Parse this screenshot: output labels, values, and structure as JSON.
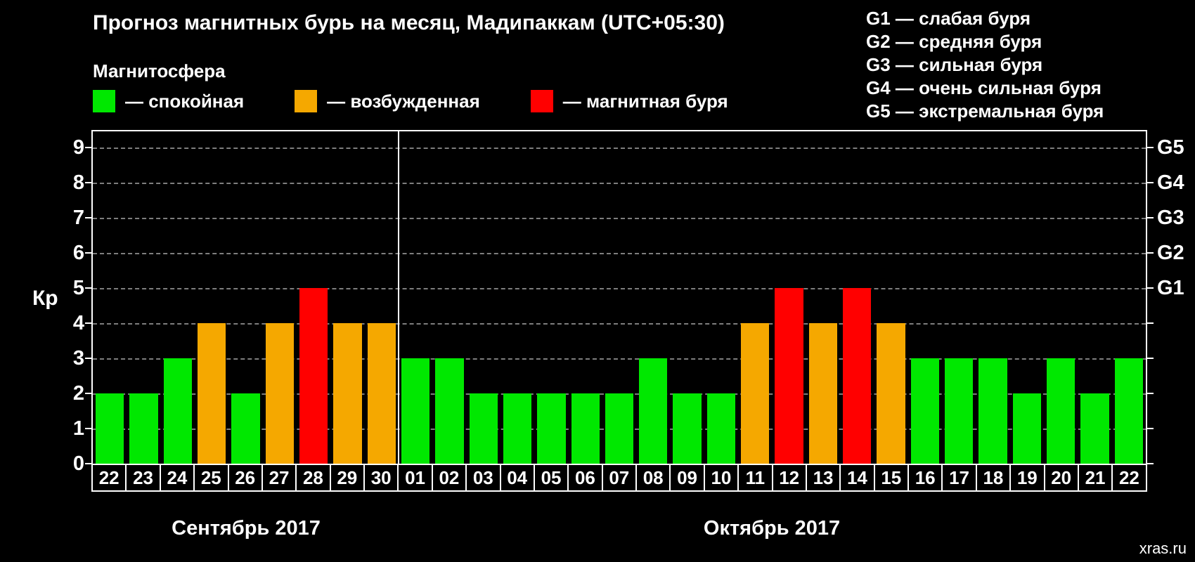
{
  "title": "Прогноз магнитных бурь на месяц, Мадипаккам (UTC+05:30)",
  "subtitle": "Магнитосфера",
  "watermark": "xras.ru",
  "colors": {
    "quiet": "#00e800",
    "excited": "#f5a800",
    "storm": "#ff0000",
    "grid": "#7e7e7e",
    "axis": "#ffffff",
    "background": "#000000",
    "text": "#ffffff"
  },
  "legend": [
    {
      "key": "quiet",
      "label": "— спокойная"
    },
    {
      "key": "excited",
      "label": "— возбужденная"
    },
    {
      "key": "storm",
      "label": "— магнитная буря"
    }
  ],
  "g_legend": [
    "G1 — слабая буря",
    "G2 — средняя буря",
    "G3 — сильная буря",
    "G4 — очень сильная буря",
    "G5 — экстремальная буря"
  ],
  "chart_data": {
    "type": "bar",
    "title": "Прогноз магнитных бурь на месяц, Мадипаккам (UTC+05:30)",
    "xlabel": "",
    "ylabel": "Кр",
    "ylim": [
      0,
      9
    ],
    "yticks": [
      0,
      1,
      2,
      3,
      4,
      5,
      6,
      7,
      8,
      9
    ],
    "grid": true,
    "right_axis": [
      {
        "label": "G1",
        "kp": 5
      },
      {
        "label": "G2",
        "kp": 6
      },
      {
        "label": "G3",
        "kp": 7
      },
      {
        "label": "G4",
        "kp": 8
      },
      {
        "label": "G5",
        "kp": 9
      }
    ],
    "months": [
      {
        "label": "Сентябрь 2017",
        "days": [
          "22",
          "23",
          "24",
          "25",
          "26",
          "27",
          "28",
          "29",
          "30"
        ],
        "values": [
          2,
          2,
          3,
          4,
          2,
          4,
          5,
          4,
          4
        ],
        "levels": [
          "quiet",
          "quiet",
          "quiet",
          "excited",
          "quiet",
          "excited",
          "storm",
          "excited",
          "excited"
        ]
      },
      {
        "label": "Октябрь 2017",
        "days": [
          "01",
          "02",
          "03",
          "04",
          "05",
          "06",
          "07",
          "08",
          "09",
          "10",
          "11",
          "12",
          "13",
          "14",
          "15",
          "16",
          "17",
          "18",
          "19",
          "20",
          "21",
          "22"
        ],
        "values": [
          3,
          3,
          2,
          2,
          2,
          2,
          2,
          3,
          2,
          2,
          4,
          5,
          4,
          5,
          4,
          3,
          3,
          3,
          2,
          3,
          2,
          3
        ],
        "levels": [
          "quiet",
          "quiet",
          "quiet",
          "quiet",
          "quiet",
          "quiet",
          "quiet",
          "quiet",
          "quiet",
          "quiet",
          "excited",
          "storm",
          "excited",
          "storm",
          "excited",
          "quiet",
          "quiet",
          "quiet",
          "quiet",
          "quiet",
          "quiet",
          "quiet"
        ]
      }
    ]
  }
}
